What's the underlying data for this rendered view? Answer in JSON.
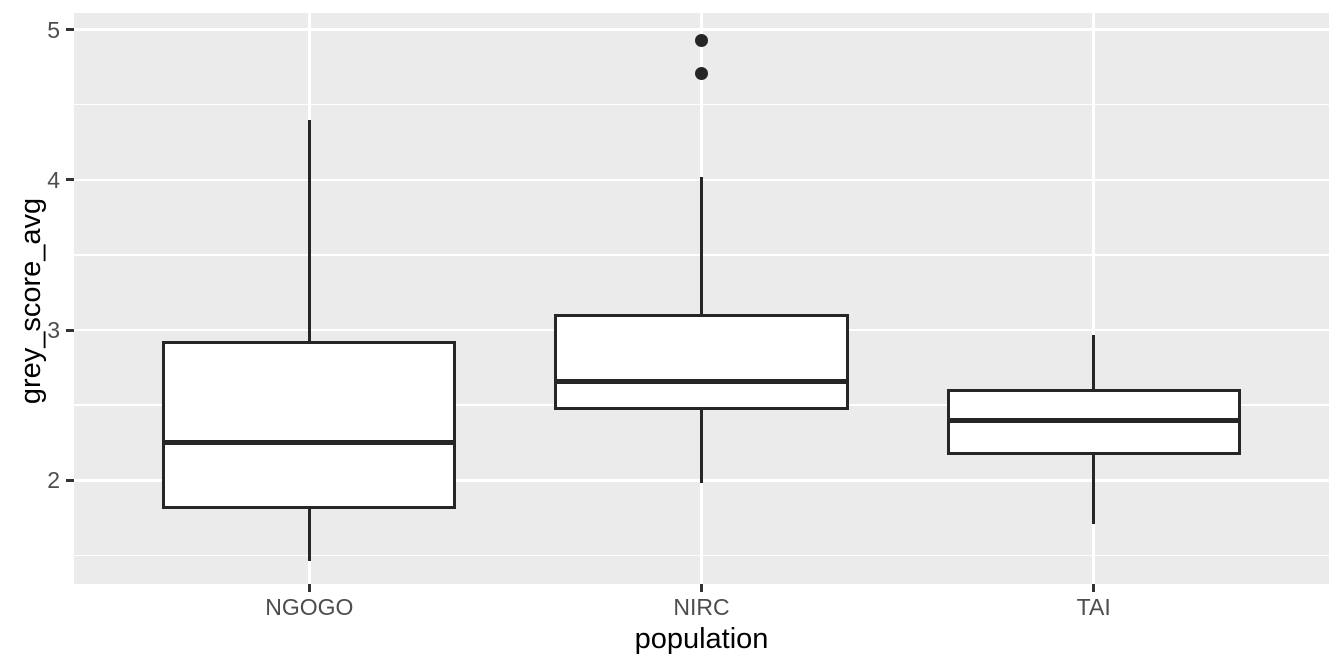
{
  "chart_data": {
    "type": "boxplot",
    "title": "",
    "xlabel": "population",
    "ylabel": "grey_score_avg",
    "categories": [
      "NGOGO",
      "NIRC",
      "TAI"
    ],
    "series": [
      {
        "category": "NGOGO",
        "whisker_min": 1.46,
        "q1": 1.81,
        "median": 2.25,
        "q3": 2.93,
        "whisker_max": 4.4,
        "outliers": []
      },
      {
        "category": "NIRC",
        "whisker_min": 1.98,
        "q1": 2.47,
        "median": 2.66,
        "q3": 3.11,
        "whisker_max": 4.02,
        "outliers": [
          4.71,
          4.93
        ]
      },
      {
        "category": "TAI",
        "whisker_min": 1.71,
        "q1": 2.17,
        "median": 2.4,
        "q3": 2.61,
        "whisker_max": 2.97,
        "outliers": []
      }
    ],
    "y_axis": {
      "ticks": [
        2,
        3,
        4,
        5
      ],
      "tick_labels": [
        "2",
        "3",
        "4",
        "5"
      ],
      "minor_ticks": [
        1.5,
        2.5,
        3.5,
        4.5
      ],
      "range": [
        1.31,
        5.11
      ]
    },
    "x_axis": {
      "label": "population",
      "tick_labels": [
        "NGOGO",
        "NIRC",
        "TAI"
      ]
    },
    "layout": {
      "legend": "none",
      "grid": "major-and-minor-horizontal-plus-major-vertical",
      "box_width_fraction": 0.75
    },
    "style": {
      "panel_bg": "#EBEBEB",
      "grid_color": "#FFFFFF",
      "box_fill": "#FFFFFF",
      "line_color": "#262626",
      "tick_mark_color": "#333333",
      "tick_label_color": "#4D4D4D",
      "axis_title_color": "#000000"
    }
  }
}
